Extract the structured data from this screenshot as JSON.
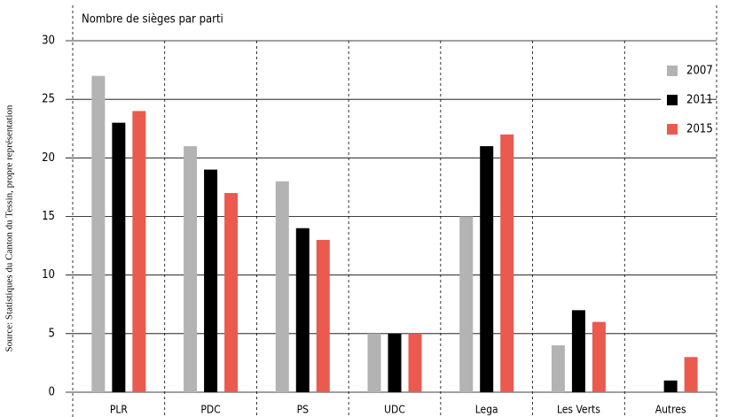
{
  "chart_data": {
    "type": "bar",
    "title": "Nombre de sièges par parti",
    "source": "Source: Statistiques du Canton du Tessin, propre représentation",
    "categories": [
      "PLR",
      "PDC",
      "PS",
      "UDC",
      "Lega",
      "Les Verts",
      "Autres"
    ],
    "series": [
      {
        "name": "2007",
        "color": "#b3b3b3",
        "values": [
          27,
          21,
          18,
          5,
          15,
          4,
          0
        ]
      },
      {
        "name": "2011",
        "color": "#000000",
        "values": [
          23,
          19,
          14,
          5,
          21,
          7,
          1
        ]
      },
      {
        "name": "2015",
        "color": "#eb5a4f",
        "values": [
          24,
          17,
          13,
          5,
          22,
          6,
          3
        ]
      }
    ],
    "ylim": [
      0,
      30
    ],
    "yticks": [
      0,
      5,
      10,
      15,
      20,
      25,
      30
    ],
    "grid": true,
    "legend": "upper right"
  }
}
